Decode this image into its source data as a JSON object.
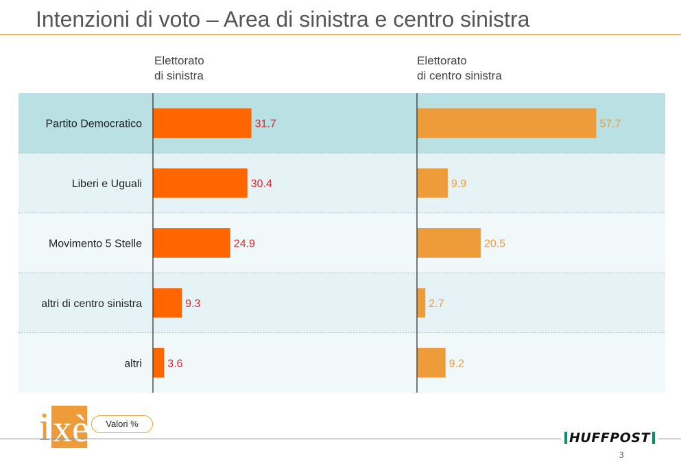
{
  "title": "Intenzioni di voto – Area di sinistra e centro sinistra",
  "footer": {
    "logo_text": "ixè",
    "units_badge": "Valori %",
    "brand": "HUFFPOST",
    "page_number": "3"
  },
  "colors": {
    "band_highlight": "#b9e0e3",
    "band_light_a": "#e6f3f6",
    "band_light_b": "#f1f8fa",
    "series_left": "#ff6600",
    "series_right": "#ee9b3a",
    "label_left": "#e3242b",
    "label_right": "#ee9b3a",
    "title_rule": "#e9a33c",
    "logo": "#ee9b3a"
  },
  "chart_data": {
    "type": "bar",
    "orientation": "horizontal",
    "categories": [
      "Partito Democratico",
      "Liberi e Uguali",
      "Movimento 5 Stelle",
      "altri di centro sinistra",
      "altri"
    ],
    "series": [
      {
        "name": "Elettorato\ndi sinistra",
        "values": [
          31.7,
          30.4,
          24.9,
          9.3,
          3.6
        ]
      },
      {
        "name": "Elettorato\ndi centro sinistra",
        "values": [
          57.7,
          9.9,
          20.5,
          2.7,
          9.2
        ]
      }
    ],
    "xlim": [
      0,
      100
    ],
    "grid": false,
    "legend": "top"
  }
}
